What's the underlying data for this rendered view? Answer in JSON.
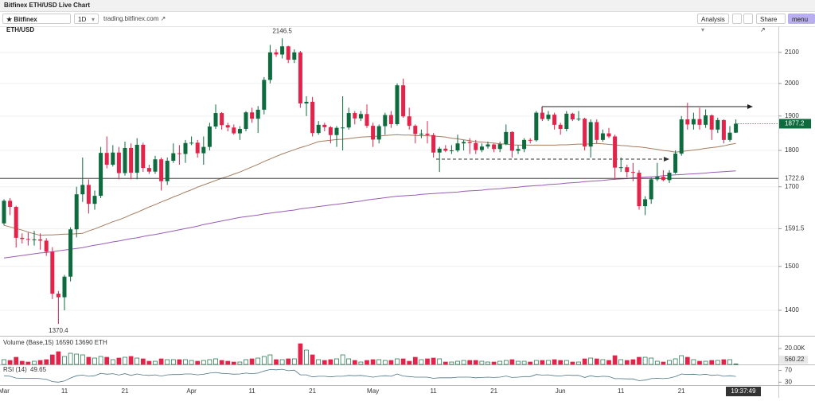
{
  "window_title": "Bitfinex ETH/USD Live Chart",
  "toolbar": {
    "symbol": "Bitfinex ETH/USD",
    "interval": "1D",
    "link": "trading.bitfinex.com",
    "analysis": "Analysis",
    "share": "Share",
    "menu": "menu"
  },
  "cursor_time": "19:37:49",
  "chart_data": [
    {
      "type": "candlestick",
      "log_scale": true,
      "grid": true,
      "up_color": "#0d6b3d",
      "down_color": "#e3234a",
      "categories": [
        "Mar",
        null,
        null,
        null,
        null,
        null,
        null,
        null,
        null,
        null,
        "11",
        null,
        null,
        null,
        null,
        null,
        null,
        null,
        null,
        null,
        "21",
        null,
        null,
        null,
        null,
        null,
        null,
        null,
        null,
        null,
        null,
        "Apr",
        null,
        null,
        null,
        null,
        null,
        null,
        null,
        null,
        null,
        "11",
        null,
        null,
        null,
        null,
        null,
        null,
        null,
        null,
        null,
        "21",
        null,
        null,
        null,
        null,
        null,
        null,
        null,
        null,
        null,
        "May",
        null,
        null,
        null,
        null,
        null,
        null,
        null,
        null,
        null,
        "11",
        null,
        null,
        null,
        null,
        null,
        null,
        null,
        null,
        null,
        "21",
        null,
        null,
        null,
        null,
        null,
        null,
        null,
        null,
        null,
        null,
        "Jun",
        null,
        null,
        null,
        null,
        null,
        null,
        null,
        null,
        null,
        "11",
        null,
        null,
        null,
        null,
        null,
        null,
        null,
        null,
        null,
        "21",
        null,
        null,
        null,
        null,
        null,
        null,
        null,
        null,
        null
      ],
      "open": [
        1605,
        1663,
        1647,
        1569,
        1566,
        1564,
        1565,
        1562,
        1535,
        1437,
        1429,
        1476,
        1590,
        1680,
        1705,
        1655,
        1676,
        1793,
        1760,
        1794,
        1737,
        1807,
        1738,
        1816,
        1751,
        1741,
        1775,
        1715,
        1771,
        1792,
        1790,
        1821,
        1822,
        1792,
        1810,
        1869,
        1909,
        1873,
        1866,
        1849,
        1862,
        1911,
        1892,
        1919,
        2011,
        2100,
        2093,
        2120,
        2076,
        2100,
        1938,
        1943,
        1850,
        1874,
        1867,
        1844,
        1865,
        1866,
        1909,
        1893,
        1906,
        1871,
        1831,
        1870,
        1903,
        1876,
        1994,
        1899,
        1871,
        1847,
        1848,
        1844,
        1794,
        1805,
        1799,
        1800,
        1820,
        1824,
        1821,
        1801,
        1811,
        1817,
        1804,
        1818,
        1853,
        1799,
        1804,
        1830,
        1829,
        1910,
        1891,
        1904,
        1874,
        1862,
        1907,
        1890,
        1892,
        1811,
        1882,
        1830,
        1849,
        1840,
        1752,
        1753,
        1740,
        1738,
        1649,
        1667,
        1720,
        1727,
        1718,
        1738,
        1791,
        1890,
        1875,
        1891,
        1874,
        1902,
        1860,
        1888,
        1830,
        1851
      ],
      "high": [
        1667,
        1670,
        1650,
        1580,
        1582,
        1586,
        1580,
        1568,
        1546,
        1443,
        1480,
        1595,
        1700,
        1780,
        1720,
        1690,
        1810,
        1840,
        1815,
        1810,
        1825,
        1820,
        1835,
        1822,
        1760,
        1785,
        1780,
        1780,
        1820,
        1815,
        1830,
        1840,
        1830,
        1840,
        1880,
        1935,
        1912,
        1880,
        1875,
        1870,
        1915,
        1925,
        1930,
        2020,
        2125,
        2110,
        2146.5,
        2122,
        2110,
        2105,
        1960,
        1958,
        1885,
        1880,
        1870,
        1870,
        1960,
        1925,
        1915,
        1915,
        1935,
        1880,
        1875,
        1910,
        1915,
        2000,
        2015,
        1925,
        1875,
        1860,
        1885,
        1850,
        1810,
        1815,
        1815,
        1845,
        1830,
        1835,
        1830,
        1820,
        1825,
        1820,
        1825,
        1875,
        1855,
        1815,
        1835,
        1835,
        1915,
        1925,
        1915,
        1910,
        1880,
        1915,
        1910,
        1915,
        1895,
        1890,
        1890,
        1860,
        1865,
        1845,
        1780,
        1760,
        1765,
        1745,
        1675,
        1725,
        1765,
        1745,
        1745,
        1800,
        1900,
        1940,
        1910,
        1925,
        1920,
        1905,
        1895,
        1890,
        1870,
        1890
      ],
      "low": [
        1600,
        1626,
        1545,
        1555,
        1550,
        1550,
        1540,
        1525,
        1425,
        1370.4,
        1400,
        1465,
        1570,
        1660,
        1630,
        1640,
        1670,
        1750,
        1755,
        1720,
        1730,
        1720,
        1720,
        1740,
        1735,
        1735,
        1690,
        1705,
        1765,
        1760,
        1765,
        1815,
        1780,
        1760,
        1800,
        1862,
        1860,
        1855,
        1845,
        1830,
        1855,
        1880,
        1850,
        1905,
        2000,
        2085,
        2080,
        2065,
        2065,
        1925,
        1900,
        1840,
        1845,
        1855,
        1820,
        1810,
        1800,
        1860,
        1875,
        1885,
        1865,
        1810,
        1820,
        1845,
        1865,
        1872,
        1895,
        1860,
        1820,
        1835,
        1820,
        1780,
        1740,
        1795,
        1790,
        1795,
        1800,
        1790,
        1790,
        1795,
        1805,
        1795,
        1795,
        1815,
        1780,
        1790,
        1795,
        1820,
        1825,
        1885,
        1885,
        1860,
        1845,
        1855,
        1885,
        1885,
        1800,
        1780,
        1820,
        1825,
        1835,
        1720,
        1740,
        1725,
        1715,
        1640,
        1626,
        1655,
        1715,
        1715,
        1710,
        1735,
        1785,
        1860,
        1860,
        1860,
        1865,
        1830,
        1850,
        1820,
        1825,
        1850
      ],
      "close": [
        1663,
        1647,
        1569,
        1566,
        1564,
        1565,
        1562,
        1535,
        1437,
        1429,
        1476,
        1590,
        1680,
        1705,
        1655,
        1676,
        1793,
        1760,
        1794,
        1737,
        1807,
        1738,
        1816,
        1751,
        1741,
        1775,
        1715,
        1771,
        1792,
        1790,
        1821,
        1822,
        1792,
        1810,
        1869,
        1909,
        1873,
        1866,
        1849,
        1862,
        1911,
        1892,
        1919,
        2011,
        2100,
        2093,
        2120,
        2076,
        2100,
        1938,
        1943,
        1850,
        1874,
        1867,
        1844,
        1865,
        1866,
        1909,
        1893,
        1906,
        1871,
        1831,
        1870,
        1903,
        1876,
        1994,
        1899,
        1871,
        1847,
        1848,
        1844,
        1794,
        1805,
        1799,
        1800,
        1820,
        1824,
        1821,
        1801,
        1811,
        1817,
        1804,
        1818,
        1853,
        1799,
        1804,
        1830,
        1829,
        1910,
        1891,
        1904,
        1874,
        1862,
        1907,
        1890,
        1892,
        1811,
        1882,
        1830,
        1849,
        1840,
        1752,
        1753,
        1740,
        1738,
        1649,
        1667,
        1720,
        1727,
        1718,
        1738,
        1791,
        1890,
        1875,
        1891,
        1874,
        1902,
        1860,
        1888,
        1830,
        1851,
        1877.2
      ],
      "series": [
        {
          "color": "#a57c5f",
          "values": [
            1600,
            1596,
            1592,
            1588,
            1583,
            1579,
            1575,
            1576,
            1576,
            1577,
            1578,
            1578,
            1579,
            1580,
            1586,
            1591,
            1597,
            1603,
            1609,
            1614,
            1620,
            1627,
            1633,
            1640,
            1647,
            1653,
            1660,
            1666,
            1673,
            1679,
            1686,
            1692,
            1699,
            1705,
            1711,
            1717,
            1723,
            1728,
            1734,
            1740,
            1747,
            1754,
            1761,
            1769,
            1776,
            1783,
            1790,
            1796,
            1802,
            1808,
            1813,
            1819,
            1825,
            1827,
            1829,
            1831,
            1832,
            1834,
            1836,
            1838,
            1839,
            1840,
            1841,
            1843,
            1844,
            1845,
            1844,
            1844,
            1843,
            1842,
            1842,
            1841,
            1840,
            1838,
            1835,
            1833,
            1830,
            1828,
            1825,
            1824,
            1822,
            1821,
            1819,
            1818,
            1816,
            1815,
            1815,
            1815,
            1815,
            1815,
            1815,
            1815,
            1816,
            1816,
            1817,
            1818,
            1818,
            1819,
            1820,
            1819,
            1817,
            1816,
            1814,
            1813,
            1811,
            1810,
            1808,
            1805,
            1803,
            1800,
            1798,
            1795,
            1797,
            1799,
            1801,
            1803,
            1806,
            1808,
            1810,
            1813,
            1817,
            1820
          ]
        },
        {
          "color": "#9b5cb4",
          "values": [
            1520,
            1522,
            1524,
            1526,
            1528,
            1530,
            1532,
            1533,
            1535,
            1537,
            1539,
            1541,
            1543,
            1545,
            1548,
            1551,
            1553,
            1556,
            1559,
            1561,
            1564,
            1567,
            1569,
            1572,
            1575,
            1577,
            1580,
            1583,
            1586,
            1589,
            1592,
            1595,
            1598,
            1602,
            1605,
            1608,
            1611,
            1614,
            1617,
            1620,
            1622,
            1624,
            1626,
            1629,
            1631,
            1633,
            1635,
            1637,
            1639,
            1642,
            1644,
            1646,
            1648,
            1650,
            1652,
            1654,
            1656,
            1658,
            1660,
            1662,
            1665,
            1667,
            1669,
            1671,
            1673,
            1675,
            1676,
            1677,
            1678,
            1680,
            1681,
            1682,
            1683,
            1684,
            1685,
            1686,
            1688,
            1689,
            1690,
            1691,
            1693,
            1694,
            1695,
            1697,
            1698,
            1699,
            1701,
            1702,
            1703,
            1704,
            1706,
            1707,
            1708,
            1710,
            1711,
            1712,
            1714,
            1715,
            1716,
            1717,
            1719,
            1720,
            1721,
            1722,
            1724,
            1725,
            1726,
            1727,
            1728,
            1730,
            1731,
            1732,
            1733,
            1734,
            1735,
            1736,
            1737,
            1739,
            1740,
            1741,
            1742,
            1743
          ]
        }
      ],
      "hline": 1722.6,
      "ylim": [
        1345,
        2188
      ],
      "yticks": [
        1400,
        1500,
        1591.5,
        1700,
        1800,
        1900,
        2000,
        2100
      ]
    },
    {
      "type": "bar",
      "title": "Volume (Base,15)  16590  13690 ETH",
      "values": [
        6000,
        5000,
        9000,
        4000,
        3000,
        4000,
        5000,
        6000,
        12000,
        16000,
        10000,
        14000,
        13000,
        12000,
        9000,
        8000,
        10000,
        9000,
        6000,
        8000,
        9000,
        10000,
        8000,
        7000,
        4000,
        4000,
        7000,
        6000,
        6000,
        6000,
        6000,
        5000,
        4000,
        5000,
        6000,
        7000,
        5000,
        4000,
        3000,
        3000,
        6000,
        7000,
        8000,
        10000,
        12000,
        6000,
        6000,
        7000,
        7000,
        26000,
        18000,
        12000,
        6000,
        5000,
        6000,
        7000,
        12000,
        7000,
        5000,
        3000,
        5000,
        6000,
        6000,
        5000,
        5000,
        7000,
        7000,
        4000,
        9000,
        6000,
        7000,
        8000,
        7000,
        3000,
        3000,
        4000,
        5000,
        5000,
        5000,
        4000,
        3000,
        3000,
        4000,
        5000,
        6000,
        4000,
        4000,
        3000,
        5000,
        5000,
        5000,
        6000,
        5000,
        5000,
        3000,
        3000,
        7000,
        8000,
        7000,
        6000,
        5000,
        11000,
        6000,
        5000,
        6000,
        9000,
        9000,
        8000,
        4000,
        3000,
        5000,
        7000,
        11000,
        9000,
        6000,
        4000,
        4000,
        5000,
        5000,
        6000,
        6000,
        560.22
      ],
      "ylim": [
        0,
        34000
      ],
      "yticks": [
        {
          "value": 20000,
          "label": "20.00K"
        }
      ]
    },
    {
      "type": "line",
      "title": "RSI (14)",
      "color": "#4f7585",
      "values": [
        52,
        50,
        44,
        43,
        43,
        43,
        42,
        40,
        32,
        30,
        34,
        44,
        52,
        54,
        50,
        52,
        60,
        57,
        59,
        54,
        59,
        53,
        58,
        54,
        53,
        55,
        51,
        55,
        56,
        56,
        58,
        58,
        55,
        57,
        61,
        63,
        60,
        59,
        57,
        58,
        61,
        59,
        61,
        68,
        73,
        72,
        74,
        69,
        71,
        55,
        55,
        48,
        50,
        50,
        48,
        50,
        50,
        53,
        52,
        53,
        50,
        47,
        50,
        52,
        50,
        58,
        51,
        49,
        47,
        47,
        47,
        43,
        45,
        45,
        45,
        47,
        47,
        47,
        45,
        46,
        47,
        46,
        47,
        51,
        46,
        47,
        49,
        49,
        56,
        54,
        55,
        52,
        51,
        54,
        53,
        53,
        46,
        52,
        48,
        50,
        49,
        42,
        42,
        41,
        41,
        35,
        37,
        42,
        43,
        42,
        44,
        49,
        58,
        56,
        57,
        55,
        57,
        53,
        55,
        50,
        52,
        49.65
      ],
      "ylim": [
        20,
        85
      ],
      "yticks": [
        70,
        30
      ]
    }
  ]
}
